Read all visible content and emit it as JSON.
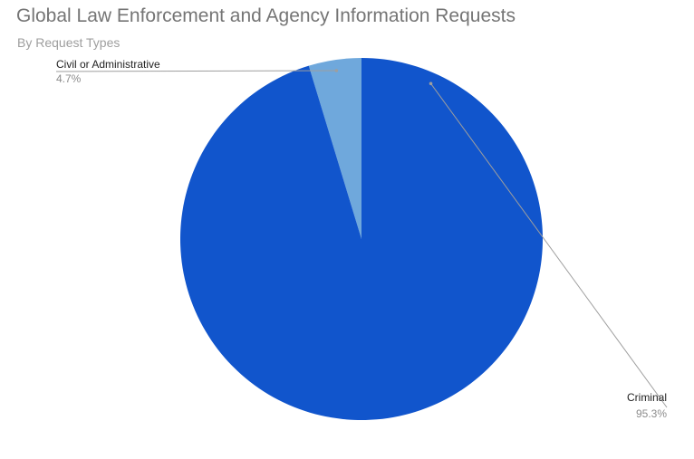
{
  "chart_data": {
    "type": "pie",
    "title": "Global Law Enforcement and Agency Information Requests",
    "subtitle": "By Request Types",
    "slices": [
      {
        "name": "Civil or Administrative",
        "value": 4.7,
        "label": "4.7%",
        "color": "#6fa8dc"
      },
      {
        "name": "Criminal",
        "value": 95.3,
        "label": "95.3%",
        "color": "#1155cc"
      }
    ],
    "start_angle_deg": 0,
    "direction": "counterclockwise",
    "legend": "none"
  }
}
